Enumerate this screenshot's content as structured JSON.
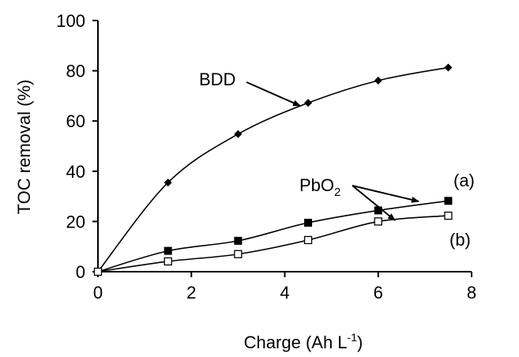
{
  "chart_data": {
    "type": "line",
    "title": "",
    "xlabel": "Charge (Ah L",
    "xlabel_sup": "-1",
    "xlabel_close": ")",
    "ylabel": "TOC removal (%)",
    "xlim": [
      0,
      8
    ],
    "ylim": [
      0,
      100
    ],
    "xticks": [
      0,
      2,
      4,
      6,
      8
    ],
    "yticks": [
      0,
      20,
      40,
      60,
      80,
      100
    ],
    "grid": false,
    "series": [
      {
        "marker": "diamond-filled",
        "color": "#000000",
        "x": [
          0,
          1.5,
          3,
          4.5,
          6,
          7.5
        ],
        "y": [
          0,
          35.5,
          54.8,
          67.2,
          76.1,
          81.3
        ]
      },
      {
        "marker": "square-filled",
        "color": "#000000",
        "x": [
          0,
          1.5,
          3,
          4.5,
          6,
          7.5
        ],
        "y": [
          0,
          8.3,
          12.3,
          19.5,
          24.4,
          28.2
        ]
      },
      {
        "marker": "square-open",
        "color": "#000000",
        "x": [
          0,
          1.5,
          3,
          4.5,
          6,
          7.5
        ],
        "y": [
          0,
          4.1,
          7.0,
          12.6,
          20.0,
          22.3
        ]
      }
    ],
    "annotations": {
      "bdd": "BDD",
      "pbo2_main": "PbO",
      "pbo2_sub": "2",
      "label_a": "(a)",
      "label_b": "(b)"
    }
  }
}
